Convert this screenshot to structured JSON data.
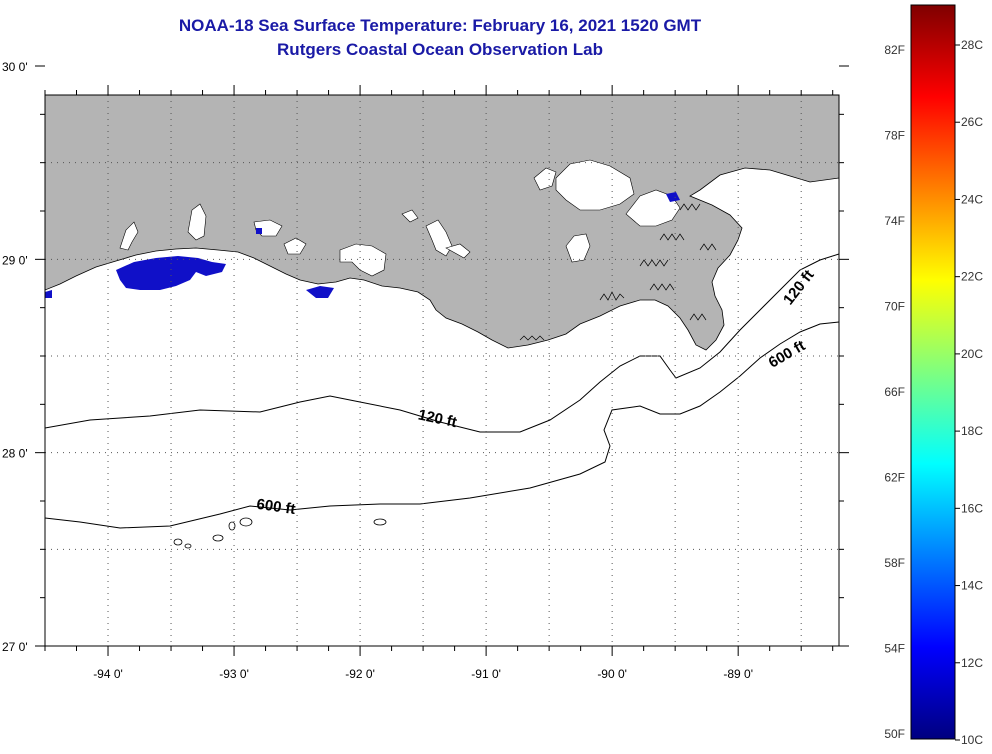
{
  "header": {
    "title": "NOAA-18 Sea Surface Temperature:  February 16, 2021 1520 GMT",
    "subtitle": "Rutgers Coastal Ocean Observation Lab"
  },
  "map": {
    "lon_range": [
      -94.5,
      -88.2
    ],
    "lat_range": [
      27,
      29.85
    ],
    "lon_ticks": [
      {
        "value": -94,
        "label": "-94 0'"
      },
      {
        "value": -93,
        "label": "-93 0'"
      },
      {
        "value": -92,
        "label": "-92 0'"
      },
      {
        "value": -91,
        "label": "-91 0'"
      },
      {
        "value": -90,
        "label": "-90 0'"
      },
      {
        "value": -89,
        "label": "-89 0'"
      }
    ],
    "lat_ticks": [
      {
        "value": 30,
        "label": "30 0'"
      },
      {
        "value": 29,
        "label": "29 0'"
      },
      {
        "value": 28,
        "label": "28 0'"
      },
      {
        "value": 27,
        "label": "27 0'"
      }
    ],
    "contour_labels": [
      {
        "text": "120 ft",
        "isobath": "120 ft",
        "location": "off central Louisiana"
      },
      {
        "text": "120 ft",
        "isobath": "120 ft",
        "location": "east of Mississippi delta"
      },
      {
        "text": "600 ft",
        "isobath": "600 ft",
        "location": "western shelf edge"
      },
      {
        "text": "600 ft",
        "isobath": "600 ft",
        "location": "south-east of delta"
      }
    ],
    "colors": {
      "land": "#b4b4b4",
      "water_no_data": "#ffffff",
      "cold_sst": "#1010c8",
      "contour": "#000000"
    }
  },
  "colorbar": {
    "gradient": [
      "#00007f",
      "#0000ff",
      "#007fff",
      "#00ffff",
      "#7fff7f",
      "#ffff00",
      "#ff7f00",
      "#ff0000",
      "#7f0000"
    ],
    "fahrenheit_labels": [
      "82F",
      "78F",
      "74F",
      "70F",
      "66F",
      "62F",
      "58F",
      "54F",
      "50F"
    ],
    "celsius_labels": [
      "28C",
      "26C",
      "24C",
      "22C",
      "20C",
      "18C",
      "16C",
      "14C",
      "12C",
      "10C"
    ]
  }
}
